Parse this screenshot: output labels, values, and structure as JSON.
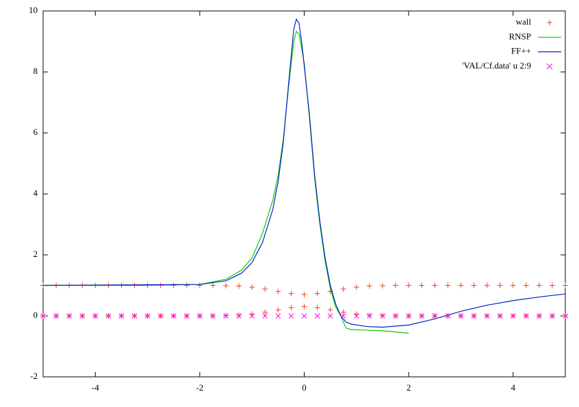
{
  "chart_data": {
    "type": "line",
    "xlim": [
      -5,
      5
    ],
    "ylim": [
      -2,
      10
    ],
    "xticks": [
      -4,
      -2,
      0,
      2,
      4
    ],
    "yticks": [
      -2,
      0,
      2,
      4,
      6,
      8,
      10
    ],
    "grid": false,
    "legend": "top-right",
    "series": [
      {
        "name": "wall",
        "type": "scatter",
        "marker": "plus",
        "color": "#f0401e",
        "x": [
          -5,
          -4.75,
          -4.5,
          -4.25,
          -4,
          -3.75,
          -3.5,
          -3.25,
          -3,
          -2.75,
          -2.5,
          -2.25,
          -2,
          -1.75,
          -1.5,
          -1.25,
          -1,
          -0.75,
          -0.5,
          -0.25,
          0,
          0.25,
          0.5,
          0.75,
          1,
          1.25,
          1.5,
          1.75,
          2,
          2.25,
          2.5,
          2.75,
          3,
          3.25,
          3.5,
          3.75,
          4,
          4.25,
          4.5,
          4.75,
          5,
          -5,
          -4.75,
          -4.5,
          -4.25,
          -4,
          -3.75,
          -3.5,
          -3.25,
          -3,
          -2.75,
          -2.5,
          -2.25,
          -2,
          -1.75,
          -1.5,
          -1.25,
          -1,
          -0.75,
          -0.5,
          -0.25,
          0,
          0.25,
          0.5,
          0.75,
          1,
          1.25,
          1.5,
          1.75,
          2,
          2.25,
          2.5,
          2.75,
          3,
          3.25,
          3.5,
          3.75,
          4,
          4.25,
          4.5,
          4.75,
          5
        ],
        "values": [
          1,
          1,
          1,
          1,
          1,
          1,
          1,
          1,
          1,
          1,
          1,
          1,
          1,
          1,
          0.99,
          0.98,
          0.94,
          0.88,
          0.8,
          0.73,
          0.7,
          0.73,
          0.8,
          0.88,
          0.94,
          0.98,
          0.99,
          1,
          1,
          1,
          1,
          1,
          1,
          1,
          1,
          1,
          1,
          1,
          1,
          1,
          1,
          0,
          0,
          0,
          0,
          0,
          0,
          0,
          0,
          0,
          0,
          0,
          0,
          0,
          0,
          0.01,
          0.02,
          0.06,
          0.12,
          0.2,
          0.27,
          0.3,
          0.27,
          0.2,
          0.12,
          0.06,
          0.02,
          0.01,
          0,
          0,
          0,
          0,
          0,
          0,
          0,
          0,
          0,
          0,
          0,
          0,
          0,
          0
        ]
      },
      {
        "name": "RNSP",
        "type": "line",
        "color": "#00cc00",
        "x": [
          -5,
          -3,
          -2,
          -1.5,
          -1.2,
          -1,
          -0.8,
          -0.6,
          -0.5,
          -0.4,
          -0.3,
          -0.2,
          -0.15,
          -0.1,
          0,
          0.1,
          0.2,
          0.3,
          0.4,
          0.5,
          0.6,
          0.7,
          0.8,
          0.9,
          1.2,
          1.6,
          2
        ],
        "values": [
          1,
          1,
          1.03,
          1.2,
          1.5,
          1.9,
          2.7,
          3.8,
          4.6,
          5.8,
          7.5,
          9.0,
          9.33,
          9.25,
          8.3,
          6.5,
          4.5,
          3.0,
          1.8,
          0.9,
          0.3,
          0,
          -0.4,
          -0.45,
          -0.47,
          -0.5,
          -0.57
        ]
      },
      {
        "name": "FF++",
        "type": "line",
        "color": "#0020c8",
        "x": [
          -5,
          -2,
          -1.5,
          -1.2,
          -1,
          -0.8,
          -0.6,
          -0.5,
          -0.4,
          -0.3,
          -0.2,
          -0.15,
          -0.1,
          -0.05,
          0,
          0.1,
          0.2,
          0.3,
          0.4,
          0.5,
          0.6,
          0.7,
          0.8,
          0.9,
          1.2,
          1.5,
          2,
          2.5,
          3,
          3.5,
          4,
          4.5,
          5
        ],
        "values": [
          1,
          1.03,
          1.15,
          1.4,
          1.75,
          2.4,
          3.5,
          4.4,
          5.7,
          7.6,
          9.4,
          9.73,
          9.6,
          9.0,
          8.2,
          6.6,
          4.6,
          3.1,
          1.9,
          1.0,
          0.4,
          0,
          -0.2,
          -0.27,
          -0.35,
          -0.37,
          -0.3,
          -0.1,
          0.15,
          0.35,
          0.5,
          0.62,
          0.72
        ]
      },
      {
        "name": "'VAL/Cf.data' u 2:9",
        "type": "scatter",
        "marker": "cross",
        "color": "#ff00ff",
        "x": [
          -5,
          -4.75,
          -4.5,
          -4.25,
          -4,
          -3.75,
          -3.5,
          -3.25,
          -3,
          -2.75,
          -2.5,
          -2.25,
          -2,
          -1.75,
          -1.5,
          -1.25,
          -1,
          -0.75,
          -0.5,
          -0.25,
          0,
          0.25,
          0.5,
          0.75,
          1,
          1.25,
          1.5,
          1.75,
          2,
          2.25,
          2.5,
          2.75,
          3,
          3.25,
          3.5,
          3.75,
          4,
          4.25,
          4.5,
          4.75,
          5
        ],
        "values": [
          0,
          0,
          0,
          0,
          0,
          0,
          0,
          0,
          0,
          0,
          0,
          0,
          0,
          0,
          0,
          0,
          0,
          0,
          0,
          0,
          0,
          0,
          0,
          0,
          0,
          0,
          0,
          0,
          0,
          0,
          0,
          0,
          0,
          0,
          0,
          0,
          0,
          0,
          0,
          0,
          0
        ]
      }
    ]
  }
}
